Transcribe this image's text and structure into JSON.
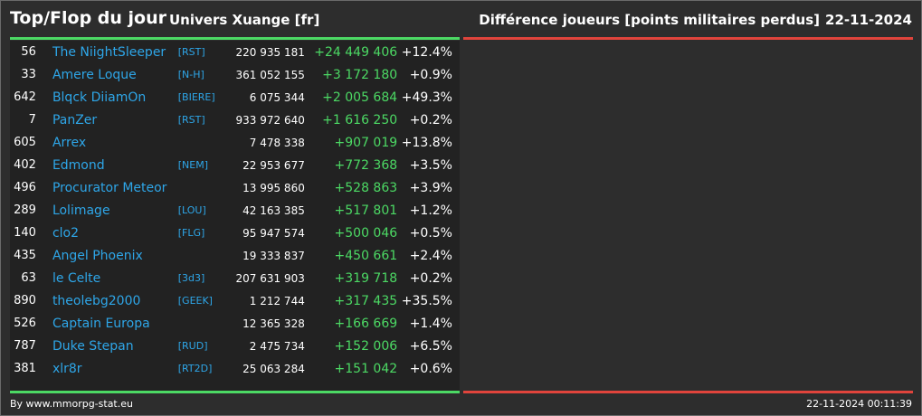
{
  "header": {
    "title": "Top/Flop du jour",
    "universe": "Univers Xuange [fr]",
    "metric": "Différence joueurs [points militaires perdus]",
    "date": "22-11-2024"
  },
  "colors": {
    "positive": "#4cd964",
    "negative": "#e0443c",
    "player": "#2ea6e8"
  },
  "rows": [
    {
      "rank": "56",
      "name": "The NiightSleeper",
      "alliance": "[RST]",
      "points": "220 935 181",
      "diff": "+24 449 406",
      "pct": "+12.4%"
    },
    {
      "rank": "33",
      "name": "Amere Loque",
      "alliance": "[N-H]",
      "points": "361 052 155",
      "diff": "+3 172 180",
      "pct": "+0.9%"
    },
    {
      "rank": "642",
      "name": "Blqck DiiamOn",
      "alliance": "[BIERE]",
      "points": "6 075 344",
      "diff": "+2 005 684",
      "pct": "+49.3%"
    },
    {
      "rank": "7",
      "name": "PanZer",
      "alliance": "[RST]",
      "points": "933 972 640",
      "diff": "+1 616 250",
      "pct": "+0.2%"
    },
    {
      "rank": "605",
      "name": "Arrex",
      "alliance": "",
      "points": "7 478 338",
      "diff": "+907 019",
      "pct": "+13.8%"
    },
    {
      "rank": "402",
      "name": "Edmond",
      "alliance": "[NEM]",
      "points": "22 953 677",
      "diff": "+772 368",
      "pct": "+3.5%"
    },
    {
      "rank": "496",
      "name": "Procurator Meteor",
      "alliance": "",
      "points": "13 995 860",
      "diff": "+528 863",
      "pct": "+3.9%"
    },
    {
      "rank": "289",
      "name": "Lolimage",
      "alliance": "[LOU]",
      "points": "42 163 385",
      "diff": "+517 801",
      "pct": "+1.2%"
    },
    {
      "rank": "140",
      "name": "clo2",
      "alliance": "[FLG]",
      "points": "95 947 574",
      "diff": "+500 046",
      "pct": "+0.5%"
    },
    {
      "rank": "435",
      "name": "Angel Phoenix",
      "alliance": "",
      "points": "19 333 837",
      "diff": "+450 661",
      "pct": "+2.4%"
    },
    {
      "rank": "63",
      "name": "le Celte",
      "alliance": "[3d3]",
      "points": "207 631 903",
      "diff": "+319 718",
      "pct": "+0.2%"
    },
    {
      "rank": "890",
      "name": "theolebg2000",
      "alliance": "[GEEK]",
      "points": "1 212 744",
      "diff": "+317 435",
      "pct": "+35.5%"
    },
    {
      "rank": "526",
      "name": "Captain Europa",
      "alliance": "",
      "points": "12 365 328",
      "diff": "+166 669",
      "pct": "+1.4%"
    },
    {
      "rank": "787",
      "name": "Duke Stepan",
      "alliance": "[RUD]",
      "points": "2 475 734",
      "diff": "+152 006",
      "pct": "+6.5%"
    },
    {
      "rank": "381",
      "name": "xlr8r",
      "alliance": "[RT2D]",
      "points": "25 063 284",
      "diff": "+151 042",
      "pct": "+0.6%"
    }
  ],
  "footer": {
    "credit": "By www.mmorpg-stat.eu",
    "timestamp": "22-11-2024 00:11:39"
  }
}
